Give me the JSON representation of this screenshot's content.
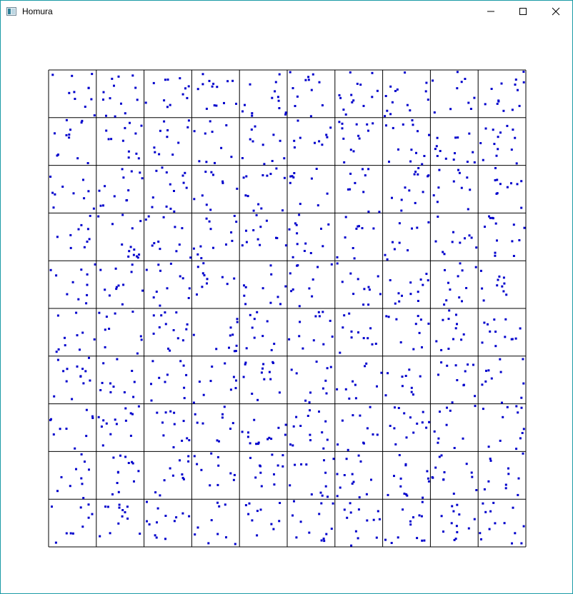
{
  "window": {
    "title": "Homura",
    "icon": "app-window-icon",
    "controls": [
      "minimize-icon",
      "maximize-icon",
      "close-icon"
    ],
    "frame_color": "#1a9ba6"
  },
  "canvas": {
    "grid_rows": 10,
    "grid_cols": 10,
    "points_per_cell": 12,
    "seed": 7,
    "grid_color": "#000000",
    "point_color": "#0000cc"
  }
}
